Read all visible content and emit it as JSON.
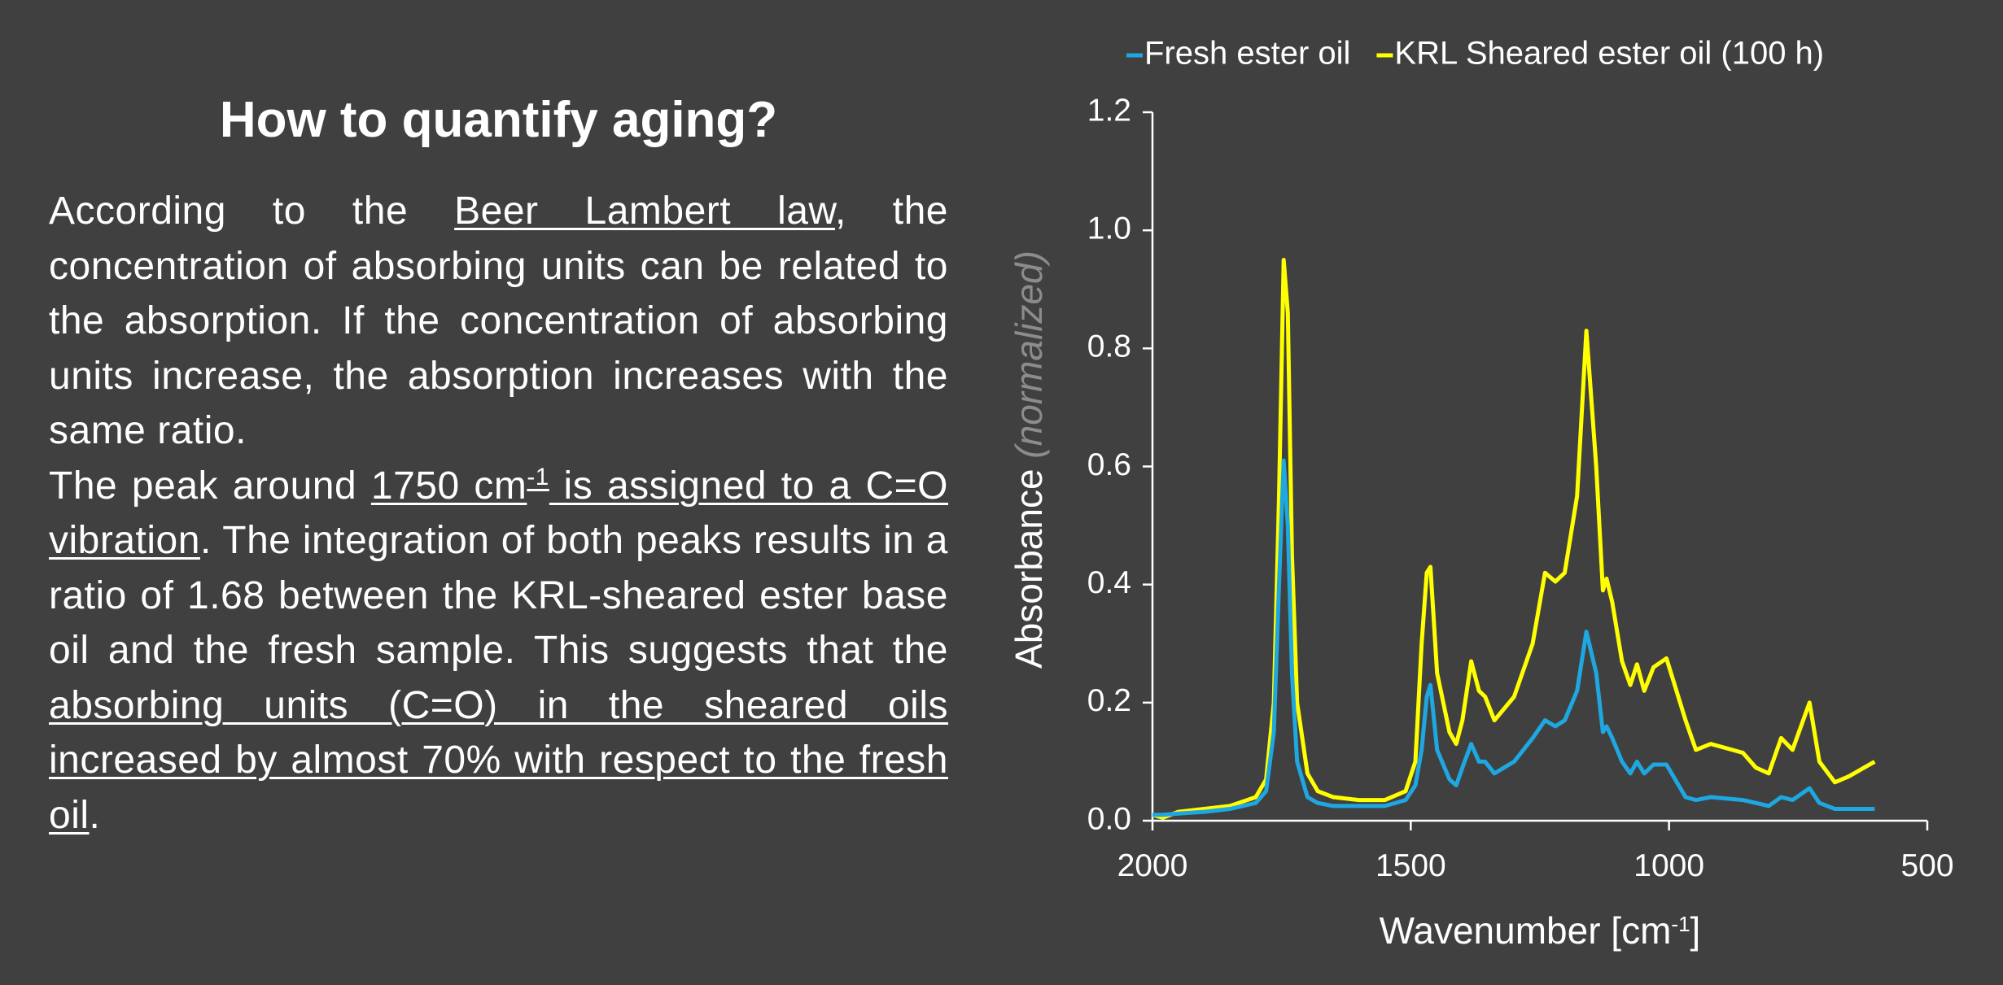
{
  "title": "How to quantify aging?",
  "paragraphs": [
    {
      "segments": [
        {
          "text": "According to the  "
        },
        {
          "text": "Beer Lambert law",
          "underline": true
        },
        {
          "text": ", the concentration of absorbing units can be related to the absorption. If the concentration of absorbing units increase, the absorption increases with the same ratio."
        }
      ]
    },
    {
      "segments": [
        {
          "text": "The peak around "
        },
        {
          "text": "1750 cm",
          "underline": true
        },
        {
          "text": "-1",
          "underline": true,
          "sup": true
        },
        {
          "text": " is assigned to a C=O vibration",
          "underline": true
        },
        {
          "text": ".  The integration of both peaks results in a ratio of 1.68 between the KRL-sheared ester base oil and the fresh sample. This suggests that the "
        },
        {
          "text": "absorbing units (C=O) in the sheared oils increased by almost 70% with respect to the fresh oil",
          "underline": true
        },
        {
          "text": "."
        }
      ]
    }
  ],
  "chart_data": {
    "type": "line",
    "xlabel": [
      {
        "text": "Wavenumber [cm"
      },
      {
        "text": "-1",
        "sup": true
      },
      {
        "text": "]"
      }
    ],
    "ylabel": [
      {
        "text": "Absorbance "
      },
      {
        "text": "(normalized)",
        "italic": true,
        "color": "#8c8c8c"
      }
    ],
    "xlim": [
      2000,
      500
    ],
    "xticks": [
      2000,
      1500,
      1000,
      500
    ],
    "ylim": [
      0,
      1.2
    ],
    "yticks": [
      {
        "value": 0,
        "label": "0.0"
      },
      0.2,
      0.4,
      0.6,
      0.8,
      {
        "value": 1,
        "label": "1.0"
      },
      1.2
    ],
    "legend": "top",
    "x": [
      2000,
      1980,
      1950,
      1900,
      1850,
      1800,
      1780,
      1765,
      1755,
      1746,
      1738,
      1730,
      1720,
      1700,
      1680,
      1650,
      1600,
      1550,
      1510,
      1491,
      1479,
      1469,
      1462,
      1449,
      1425,
      1412,
      1400,
      1383,
      1368,
      1356,
      1338,
      1300,
      1264,
      1240,
      1220,
      1202,
      1178,
      1160,
      1141,
      1128,
      1121,
      1110,
      1091,
      1075,
      1062,
      1048,
      1030,
      1005,
      968,
      948,
      919,
      857,
      832,
      807,
      783,
      761,
      728,
      709,
      679,
      652,
      602
    ],
    "series": [
      {
        "name": "Fresh ester oil",
        "color": "#1ea7e0",
        "values": [
          0.01,
          0.01,
          0.012,
          0.015,
          0.02,
          0.03,
          0.05,
          0.15,
          0.4,
          0.61,
          0.5,
          0.25,
          0.1,
          0.04,
          0.03,
          0.025,
          0.025,
          0.025,
          0.035,
          0.06,
          0.12,
          0.21,
          0.23,
          0.12,
          0.07,
          0.06,
          0.09,
          0.13,
          0.1,
          0.1,
          0.08,
          0.1,
          0.14,
          0.17,
          0.16,
          0.17,
          0.22,
          0.32,
          0.25,
          0.15,
          0.16,
          0.14,
          0.1,
          0.08,
          0.1,
          0.08,
          0.095,
          0.095,
          0.04,
          0.035,
          0.04,
          0.035,
          0.03,
          0.025,
          0.04,
          0.035,
          0.055,
          0.03,
          0.02,
          0.02,
          0.02
        ]
      },
      {
        "name": "KRL Sheared ester oil (100 h)",
        "color": "#ffff00",
        "values": [
          0.01,
          0.005,
          0.015,
          0.02,
          0.025,
          0.04,
          0.07,
          0.2,
          0.55,
          0.95,
          0.86,
          0.45,
          0.2,
          0.08,
          0.05,
          0.04,
          0.035,
          0.035,
          0.05,
          0.1,
          0.3,
          0.42,
          0.43,
          0.25,
          0.15,
          0.13,
          0.17,
          0.27,
          0.22,
          0.21,
          0.17,
          0.21,
          0.3,
          0.42,
          0.405,
          0.42,
          0.55,
          0.83,
          0.6,
          0.39,
          0.41,
          0.37,
          0.27,
          0.23,
          0.265,
          0.22,
          0.26,
          0.275,
          0.17,
          0.12,
          0.13,
          0.115,
          0.09,
          0.08,
          0.14,
          0.12,
          0.2,
          0.1,
          0.065,
          0.075,
          0.1
        ]
      }
    ]
  }
}
